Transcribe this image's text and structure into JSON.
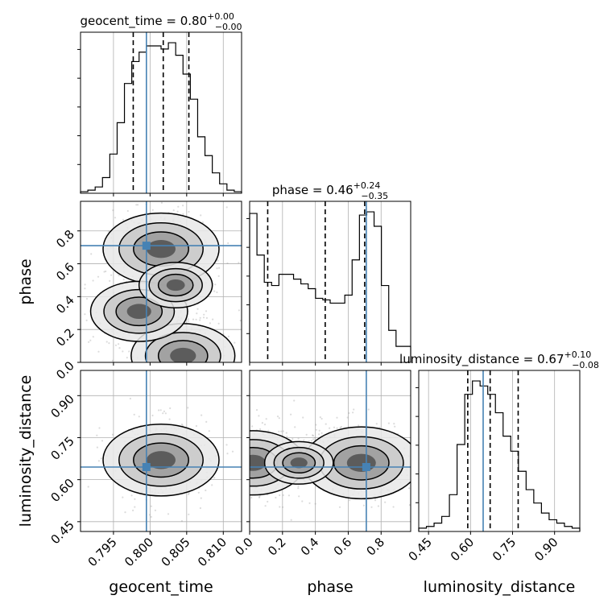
{
  "chart_data": {
    "type": "corner",
    "parameters": [
      "geocent_time",
      "phase",
      "luminosity_distance"
    ],
    "truth_color": "#4682b4",
    "truths": [
      0.7995,
      0.71,
      0.645
    ],
    "ranges": [
      [
        0.7905,
        0.8125
      ],
      [
        0.0,
        0.98
      ],
      [
        0.415,
        0.99
      ]
    ],
    "titles": [
      {
        "name": "geocent_time",
        "median": "0.80",
        "plus": "+0.00",
        "minus": "−0.00"
      },
      {
        "name": "phase",
        "median": "0.46",
        "plus": "+0.24",
        "minus": "−0.35"
      },
      {
        "name": "luminosity_distance",
        "median": "0.67",
        "plus": "+0.10",
        "minus": "−0.08"
      }
    ],
    "ticks": [
      {
        "values": [
          0.795,
          0.8,
          0.805,
          0.81
        ],
        "labels": [
          "0.795",
          "0.800",
          "0.805",
          "0.810"
        ]
      },
      {
        "values": [
          0.0,
          0.2,
          0.4,
          0.6,
          0.8
        ],
        "labels": [
          "0.0",
          "0.2",
          "0.4",
          "0.6",
          "0.8"
        ]
      },
      {
        "values": [
          0.45,
          0.6,
          0.75,
          0.9
        ],
        "labels": [
          "0.45",
          "0.60",
          "0.75",
          "0.90"
        ]
      }
    ],
    "diag_lines": [
      [
        0.7977,
        0.8018,
        0.8053
      ],
      [
        0.11,
        0.46,
        0.7
      ],
      [
        0.59,
        0.67,
        0.77
      ]
    ],
    "histograms": [
      {
        "counts": [
          1,
          2,
          4,
          10,
          25,
          45,
          70,
          84,
          90,
          94,
          94,
          92,
          96,
          88,
          76,
          60,
          36,
          24,
          13,
          6,
          2,
          1
        ]
      },
      {
        "counts": [
          93,
          67,
          50,
          48,
          55,
          55,
          52,
          49,
          46,
          40,
          39,
          37,
          37,
          42,
          64,
          92,
          94,
          85,
          48,
          20,
          10,
          10
        ]
      },
      {
        "counts": [
          2,
          3,
          5,
          9,
          22,
          52,
          82,
          90,
          87,
          82,
          71,
          57,
          48,
          36,
          25,
          17,
          11,
          7,
          5,
          3,
          2
        ]
      }
    ],
    "scatter_2d": [
      {
        "xy": [
          "geocent_time",
          "phase"
        ],
        "modes": [
          {
            "x": 0.8015,
            "y": 0.69,
            "weight": 1.0
          },
          {
            "x": 0.8045,
            "y": 0.04,
            "weight": 0.8
          },
          {
            "x": 0.7985,
            "y": 0.31,
            "weight": 0.7
          },
          {
            "x": 0.8035,
            "y": 0.47,
            "weight": 0.4
          }
        ]
      },
      {
        "xy": [
          "geocent_time",
          "luminosity_distance"
        ],
        "modes": [
          {
            "x": 0.8015,
            "y": 0.67,
            "weight": 1.0
          }
        ]
      },
      {
        "xy": [
          "phase",
          "luminosity_distance"
        ],
        "modes": [
          {
            "x": 0.68,
            "y": 0.66,
            "weight": 1.0
          },
          {
            "x": 0.02,
            "y": 0.66,
            "weight": 0.8
          },
          {
            "x": 0.3,
            "y": 0.66,
            "weight": 0.35
          }
        ]
      }
    ],
    "grid": true
  }
}
